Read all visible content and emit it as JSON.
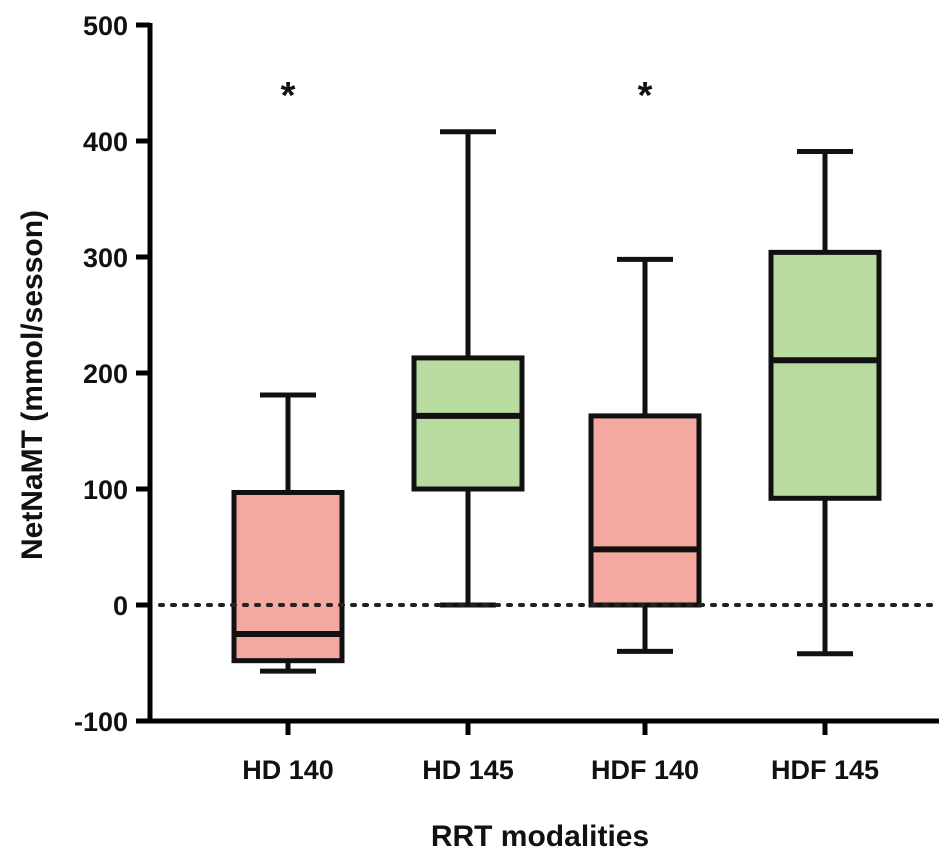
{
  "chart_data": {
    "type": "box",
    "title": "",
    "xlabel": "RRT modalities",
    "ylabel": "NetNaMT (mmol/sesson)",
    "ylim": [
      -100,
      500
    ],
    "yticks": [
      -100,
      0,
      100,
      200,
      300,
      400,
      500
    ],
    "reference_line": {
      "y": 0,
      "style": "dotted"
    },
    "grid": false,
    "legend": "none",
    "categories": [
      "HD 140",
      "HD 145",
      "HDF 140",
      "HDF 145"
    ],
    "boxes": [
      {
        "category": "HD 140",
        "min": -57,
        "q1": -48,
        "median": -25,
        "q3": 97,
        "max": 181,
        "color": "#f4a9a0",
        "annotation": "*"
      },
      {
        "category": "HD 145",
        "min": 0,
        "q1": 100,
        "median": 163,
        "q3": 213,
        "max": 408,
        "color": "#b8dca0",
        "annotation": ""
      },
      {
        "category": "HDF 140",
        "min": -40,
        "q1": 0,
        "median": 48,
        "q3": 163,
        "max": 298,
        "color": "#f4a9a0",
        "annotation": "*"
      },
      {
        "category": "HDF 145",
        "min": -42,
        "q1": 92,
        "median": 211,
        "q3": 304,
        "max": 391,
        "color": "#b8dca0",
        "annotation": ""
      }
    ]
  }
}
